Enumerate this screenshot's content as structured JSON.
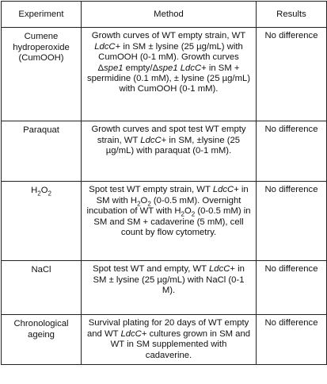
{
  "table": {
    "header": [
      "Experiment",
      "Method",
      "Results"
    ],
    "rows": [
      [
        [
          "Cumene hydroperoxide (CumOOH)"
        ],
        [
          {
            "text": "Growth curves of WT empty strain, WT "
          },
          {
            "text": "LdcC",
            "style": "italic"
          },
          {
            "text": "+ in SM ± lysine (25 µg/mL) with CumOOH (0-1 mM). Growth curves Δ"
          },
          {
            "text": "spe1",
            "style": "italic"
          },
          {
            "text": " empty/Δ"
          },
          {
            "text": "spe1",
            "style": "italic"
          },
          {
            "text": " "
          },
          {
            "text": "LdcC",
            "style": "italic"
          },
          {
            "text": "+ in SM + spermidine (0.1 mM), ± lysine (25 µg/mL) with CumOOH (0-1 mM)."
          }
        ],
        [
          "No difference"
        ]
      ],
      [
        [
          "Paraquat"
        ],
        [
          {
            "text": "Growth curves and spot test WT empty strain, WT "
          },
          {
            "text": "LdcC",
            "style": "italic"
          },
          {
            "text": "+ in SM, ±lysine (25 µg/mL) with paraquat (0-1 mM)."
          }
        ],
        [
          "No difference"
        ]
      ],
      [
        [
          {
            "text": "H"
          },
          {
            "text": "2",
            "style": "sub"
          },
          {
            "text": "O"
          },
          {
            "text": "2",
            "style": "sub"
          }
        ],
        [
          {
            "text": "Spot test WT empty strain, WT "
          },
          {
            "text": "LdcC",
            "style": "italic"
          },
          {
            "text": "+ in SM with H"
          },
          {
            "text": "2",
            "style": "sub"
          },
          {
            "text": "O"
          },
          {
            "text": "2",
            "style": "sub"
          },
          {
            "text": " (0-0.5 mM). Overnight incubation of WT with H"
          },
          {
            "text": "2",
            "style": "sub"
          },
          {
            "text": "O"
          },
          {
            "text": "2",
            "style": "sub"
          },
          {
            "text": " (0-0.5 mM) in SM and SM + cadaverine (5 mM), cell count by flow cytometry."
          }
        ],
        [
          "No difference"
        ]
      ],
      [
        [
          "NaCl"
        ],
        [
          {
            "text": "Spot test WT and empty, WT "
          },
          {
            "text": "LdcC",
            "style": "italic"
          },
          {
            "text": "+ in SM ± lysine (25 µg/mL) with NaCl (0-1 M)."
          }
        ],
        [
          "No difference"
        ]
      ],
      [
        [
          "Chronological ageing"
        ],
        [
          {
            "text": "Survival plating for 20 days of WT empty and WT "
          },
          {
            "text": "LdcC",
            "style": "italic"
          },
          {
            "text": "+ cultures grown in SM and WT in SM supplemented with cadaverine."
          }
        ],
        [
          "No difference"
        ]
      ]
    ]
  }
}
